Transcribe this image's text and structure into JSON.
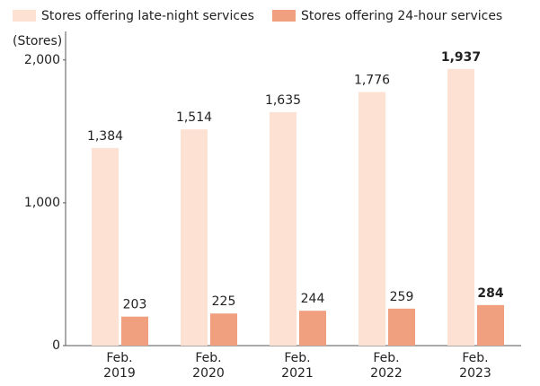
{
  "chart_data": {
    "type": "bar",
    "y_axis_label": "(Stores)",
    "categories": [
      "Feb. 2019",
      "Feb. 2020",
      "Feb. 2021",
      "Feb. 2022",
      "Feb. 2023"
    ],
    "series": [
      {
        "name": "Stores offering late-night services",
        "color": "#fde1d3",
        "values": [
          1384,
          1514,
          1635,
          1776,
          1937
        ],
        "value_labels": [
          "1,384",
          "1,514",
          "1,635",
          "1,776",
          "1,937"
        ]
      },
      {
        "name": "Stores offering 24-hour services",
        "color": "#f0a07e",
        "values": [
          203,
          225,
          244,
          259,
          284
        ]
      }
    ],
    "ylim": [
      0,
      2200
    ],
    "yticks": [
      0,
      {
        "value": 1000,
        "label": "1,000"
      },
      {
        "value": 2000,
        "label": "2,000"
      }
    ],
    "legend": "top-left"
  }
}
